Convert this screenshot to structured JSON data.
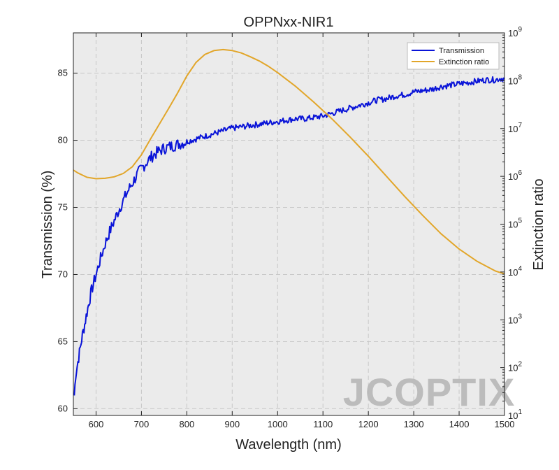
{
  "chart_data": {
    "type": "line",
    "title": "OPPNxx-NIR1",
    "xlabel": "Wavelength (nm)",
    "ylabel": "Transmission (%)",
    "y2label": "Extinction ratio",
    "xlim": [
      550,
      1500
    ],
    "ylim": [
      59.5,
      88
    ],
    "y2lim": [
      1,
      9
    ],
    "y2scale": "log10",
    "grid": true,
    "legend": "top-right",
    "x_ticks": [
      600,
      700,
      800,
      900,
      1000,
      1100,
      1200,
      1300,
      1400,
      1500
    ],
    "y_ticks": [
      60,
      65,
      70,
      75,
      80,
      85
    ],
    "y2_ticks": [
      {
        "base": "10",
        "exp": "1"
      },
      {
        "base": "10",
        "exp": "2"
      },
      {
        "base": "10",
        "exp": "3"
      },
      {
        "base": "10",
        "exp": "4"
      },
      {
        "base": "10",
        "exp": "5"
      },
      {
        "base": "10",
        "exp": "6"
      },
      {
        "base": "10",
        "exp": "7"
      },
      {
        "base": "10",
        "exp": "8"
      },
      {
        "base": "10",
        "exp": "9"
      }
    ],
    "series": [
      {
        "name": "Transmission",
        "axis": "left",
        "color": "#0a14d8",
        "x": [
          552,
          555,
          560,
          565,
          570,
          575,
          580,
          585,
          590,
          600,
          610,
          620,
          630,
          640,
          650,
          660,
          670,
          680,
          690,
          700,
          710,
          720,
          730,
          740,
          750,
          760,
          770,
          780,
          790,
          800,
          820,
          840,
          860,
          880,
          900,
          920,
          940,
          960,
          980,
          1000,
          1020,
          1040,
          1060,
          1080,
          1100,
          1120,
          1140,
          1160,
          1180,
          1200,
          1220,
          1240,
          1260,
          1280,
          1300,
          1320,
          1340,
          1360,
          1380,
          1400,
          1420,
          1440,
          1460,
          1480,
          1490,
          1500
        ],
        "y": [
          61.0,
          62.5,
          63.5,
          64.5,
          65.5,
          66.3,
          67.2,
          68.0,
          68.8,
          70.0,
          71.2,
          72.3,
          73.2,
          74.0,
          74.8,
          75.5,
          76.2,
          76.8,
          77.4,
          77.9,
          78.3,
          78.7,
          79.0,
          79.2,
          79.4,
          79.5,
          79.6,
          79.7,
          79.8,
          79.9,
          80.1,
          80.3,
          80.5,
          80.7,
          80.9,
          81.0,
          81.1,
          81.2,
          81.3,
          81.4,
          81.5,
          81.6,
          81.6,
          81.7,
          81.8,
          82.0,
          82.2,
          82.4,
          82.6,
          82.8,
          83.0,
          83.1,
          83.3,
          83.4,
          83.6,
          83.7,
          83.8,
          84.0,
          84.1,
          84.2,
          84.3,
          84.4,
          84.5,
          84.5,
          84.6,
          84.6
        ]
      },
      {
        "name": "Extinction ratio",
        "axis": "right",
        "color": "#e2a62a",
        "x": [
          550,
          560,
          580,
          600,
          620,
          640,
          660,
          680,
          700,
          720,
          740,
          760,
          780,
          800,
          820,
          840,
          860,
          880,
          900,
          920,
          940,
          960,
          980,
          1000,
          1040,
          1080,
          1120,
          1160,
          1200,
          1240,
          1280,
          1320,
          1360,
          1400,
          1440,
          1480,
          1500
        ],
        "y": [
          6.13,
          6.07,
          5.98,
          5.95,
          5.96,
          5.99,
          6.06,
          6.2,
          6.45,
          6.78,
          7.1,
          7.42,
          7.75,
          8.1,
          8.38,
          8.55,
          8.63,
          8.65,
          8.63,
          8.58,
          8.5,
          8.41,
          8.3,
          8.17,
          7.88,
          7.55,
          7.2,
          6.82,
          6.42,
          6.0,
          5.58,
          5.18,
          4.8,
          4.48,
          4.22,
          4.02,
          3.96
        ]
      }
    ]
  },
  "watermark": {
    "text": "JCOPTIX",
    "color": "#b8b8b8",
    "accent_color": "#e2a62a"
  },
  "colors": {
    "plot_background": "#ebebeb",
    "grid": "#c8c8c8",
    "frame": "#222222"
  }
}
